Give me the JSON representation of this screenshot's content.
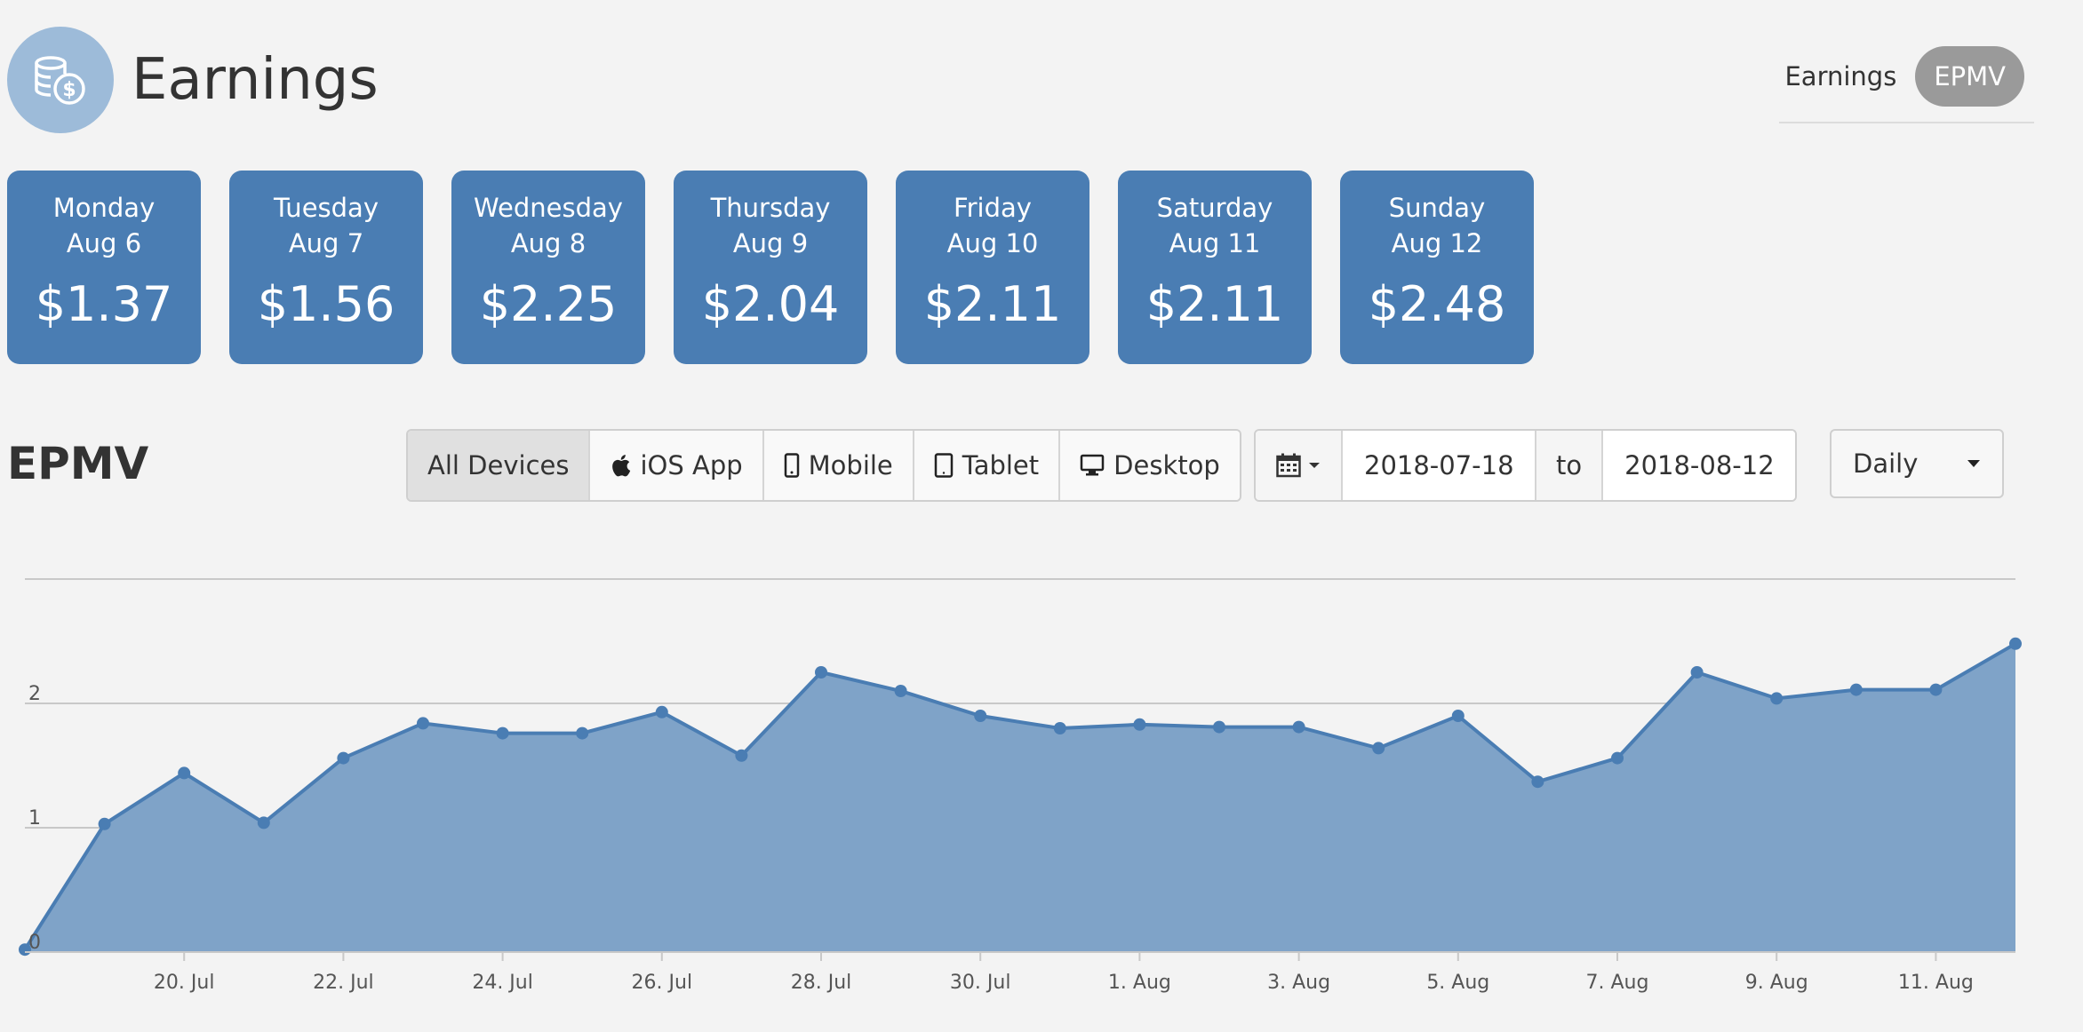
{
  "header": {
    "title": "Earnings",
    "icon": "coins-icon"
  },
  "view_toggle": {
    "earnings_label": "Earnings",
    "epmv_label": "EPMV",
    "active": "EPMV"
  },
  "daily_cards": [
    {
      "day": "Monday",
      "date": "Aug 6",
      "value": "$1.37"
    },
    {
      "day": "Tuesday",
      "date": "Aug 7",
      "value": "$1.56"
    },
    {
      "day": "Wednesday",
      "date": "Aug 8",
      "value": "$2.25"
    },
    {
      "day": "Thursday",
      "date": "Aug 9",
      "value": "$2.04"
    },
    {
      "day": "Friday",
      "date": "Aug 10",
      "value": "$2.11"
    },
    {
      "day": "Saturday",
      "date": "Aug 11",
      "value": "$2.11"
    },
    {
      "day": "Sunday",
      "date": "Aug 12",
      "value": "$2.48"
    }
  ],
  "section": {
    "title": "EPMV"
  },
  "device_filter": {
    "options": [
      "All Devices",
      "iOS App",
      "Mobile",
      "Tablet",
      "Desktop"
    ],
    "active": "All Devices"
  },
  "date_range": {
    "from": "2018-07-18",
    "to_label": "to",
    "to": "2018-08-12"
  },
  "period": {
    "selected": "Daily"
  },
  "colors": {
    "card_bg": "#4a7db3",
    "area_fill": "#7fa3c8",
    "line": "#4a7db3",
    "accent_icon_bg": "#9dbbd9"
  },
  "chart_data": {
    "type": "area",
    "x": [
      "2018-07-18",
      "2018-07-19",
      "2018-07-20",
      "2018-07-21",
      "2018-07-22",
      "2018-07-23",
      "2018-07-24",
      "2018-07-25",
      "2018-07-26",
      "2018-07-27",
      "2018-07-28",
      "2018-07-29",
      "2018-07-30",
      "2018-07-31",
      "2018-08-01",
      "2018-08-02",
      "2018-08-03",
      "2018-08-04",
      "2018-08-05",
      "2018-08-06",
      "2018-08-07",
      "2018-08-08",
      "2018-08-09",
      "2018-08-10",
      "2018-08-11",
      "2018-08-12"
    ],
    "values": [
      0.02,
      1.03,
      1.44,
      1.04,
      1.56,
      1.84,
      1.76,
      1.76,
      1.93,
      1.58,
      2.25,
      2.1,
      1.9,
      1.8,
      1.83,
      1.81,
      1.81,
      1.64,
      1.9,
      1.37,
      1.56,
      2.25,
      2.04,
      2.11,
      2.11,
      2.48
    ],
    "x_tick_labels": [
      "20. Jul",
      "22. Jul",
      "24. Jul",
      "26. Jul",
      "28. Jul",
      "30. Jul",
      "1. Aug",
      "3. Aug",
      "5. Aug",
      "7. Aug",
      "9. Aug",
      "11. Aug"
    ],
    "y_tick_labels": [
      "0",
      "1",
      "2"
    ],
    "ylim": [
      0,
      3
    ],
    "grid": true,
    "title": "",
    "xlabel": "",
    "ylabel": ""
  }
}
